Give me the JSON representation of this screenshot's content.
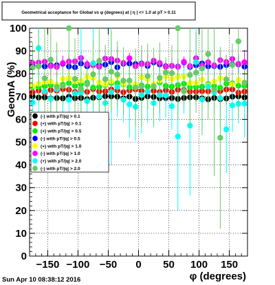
{
  "footer": {
    "date_text": "Sun Apr 10 08:38:12 2016"
  },
  "chart_data": {
    "type": "scatter",
    "title": "Geometrical acceptance for Global vs φ (degrees) at | η | <= 1.0 at pT > 0.11",
    "xlabel": "φ (degrees)",
    "ylabel": "GeomA (%)",
    "xlim": [
      -180,
      180
    ],
    "ylim": [
      0,
      100
    ],
    "grid": true,
    "legend_placement": "center-left",
    "x_ticks": [
      -150,
      -100,
      -50,
      0,
      50,
      100,
      150
    ],
    "y_ticks": [
      0,
      10,
      20,
      30,
      40,
      50,
      60,
      70,
      80,
      90,
      100
    ],
    "n_bins": 36,
    "series": [
      {
        "name": "(-) with pT/|q| > 0.1",
        "color": "#000000",
        "level": 69.5,
        "spread": 0.7,
        "err": 1.5,
        "outlier_prob": 0
      },
      {
        "name": "(+) with pT/|q| > 0.1",
        "color": "#ff0000",
        "level": 72.5,
        "spread": 0.8,
        "err": 1.5,
        "outlier_prob": 0
      },
      {
        "name": "(+) with pT/|q| > 0.5",
        "color": "#00ee00",
        "level": 75.0,
        "spread": 1.2,
        "err": 2.5,
        "outlier_prob": 0
      },
      {
        "name": "(-) with pT/|q| > 0.5",
        "color": "#0000ff",
        "level": 84.0,
        "spread": 1.2,
        "err": 2.5,
        "outlier_prob": 0
      },
      {
        "name": "(+) with pT/|q| > 1.0",
        "color": "#ffff00",
        "level": 77.0,
        "spread": 2.5,
        "err": 4.0,
        "outlier_prob": 0
      },
      {
        "name": "(-) with pT/|q| > 1.0",
        "color": "#ff00ff",
        "level": 85.0,
        "spread": 2.0,
        "err": 4.0,
        "outlier_prob": 0
      },
      {
        "name": "(+) with pT/|q| > 2.0",
        "color": "#00ffff",
        "level": 70.0,
        "spread": 5.0,
        "err": 10.0,
        "outlier_prob": 0.35
      },
      {
        "name": "(-) with pT/|q| > 2.0",
        "color": "#66cc66",
        "level": 78.0,
        "spread": 6.0,
        "err": 12.0,
        "outlier_prob": 0.45
      }
    ]
  }
}
